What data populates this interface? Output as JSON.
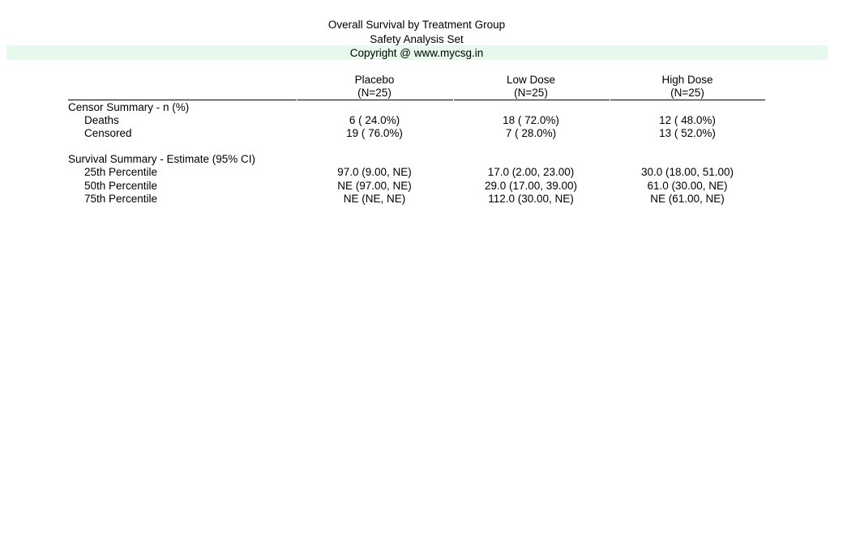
{
  "titles": {
    "line1": "Overall Survival by Treatment Group",
    "line2": "Safety Analysis Set",
    "line3": "Copyright @ www.mycsg.in",
    "band_color": "#e6f9ec"
  },
  "table": {
    "columns": [
      {
        "name": "Placebo",
        "n": "(N=25)"
      },
      {
        "name": "Low Dose",
        "n": "(N=25)"
      },
      {
        "name": "High Dose",
        "n": "(N=25)"
      }
    ],
    "sections": [
      {
        "heading": "Censor Summary - n (%)",
        "rows": [
          {
            "label": "Deaths",
            "values": [
              "6 ( 24.0%)",
              "18 ( 72.0%)",
              "12 ( 48.0%)"
            ]
          },
          {
            "label": "Censored",
            "values": [
              "19 ( 76.0%)",
              "7 ( 28.0%)",
              "13 ( 52.0%)"
            ]
          }
        ]
      },
      {
        "heading": "Survival Summary - Estimate (95% CI)",
        "rows": [
          {
            "label": "25th Percentile",
            "values": [
              "97.0 (9.00, NE)",
              "17.0 (2.00, 23.00)",
              "30.0 (18.00, 51.00)"
            ]
          },
          {
            "label": "50th Percentile",
            "values": [
              "NE (97.00, NE)",
              "29.0 (17.00, 39.00)",
              "61.0 (30.00, NE)"
            ]
          },
          {
            "label": "75th Percentile",
            "values": [
              "NE (NE, NE)",
              "112.0 (30.00, NE)",
              "NE (61.00, NE)"
            ]
          }
        ]
      }
    ]
  }
}
